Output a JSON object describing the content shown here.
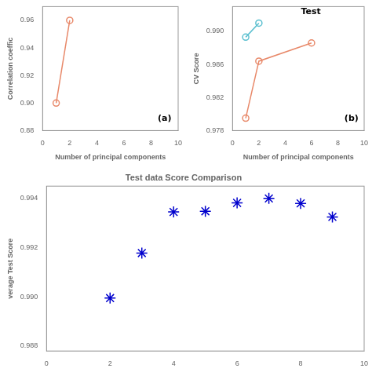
{
  "chart_data": [
    {
      "type": "line",
      "x": [
        1,
        2
      ],
      "values": [
        0.9,
        0.96
      ],
      "color": "#E8896A",
      "marker": "circle",
      "xlabel": "Number of principal components",
      "ylabel": "Correlation coeffic",
      "xlim": [
        0,
        10
      ],
      "xticks": [
        0,
        2,
        4,
        6,
        8,
        10
      ],
      "ylim": [
        0.88,
        0.97
      ],
      "yticks": [
        0.88,
        {
          "value": 0.9,
          "label": "0.90"
        },
        0.92,
        0.94,
        0.96
      ],
      "grid": false,
      "annotations": [
        "(a)"
      ]
    },
    {
      "type": "line",
      "series": [
        {
          "x": [
            1,
            2,
            6
          ],
          "values": [
            0.9795,
            0.9864,
            0.9886
          ],
          "color": "#E8896A",
          "marker": "circle"
        },
        {
          "x": [
            1,
            2
          ],
          "values": [
            0.9893,
            0.991
          ],
          "color": "#5ABFCF",
          "marker": "circle"
        }
      ],
      "xlabel": "Number of principal components",
      "ylabel": "CV Score",
      "xlim": [
        0,
        10
      ],
      "xticks": [
        0,
        2,
        4,
        6,
        8,
        10
      ],
      "ylim": [
        0.978,
        0.993
      ],
      "yticks": [
        0.978,
        0.982,
        0.986,
        {
          "value": 0.99,
          "label": "0.990"
        }
      ],
      "grid": false,
      "annotations": [
        "Test",
        "(b)"
      ]
    },
    {
      "type": "scatter",
      "title": "Test data Score Comparison",
      "x": [
        2,
        3,
        4,
        5,
        6,
        7,
        8,
        9
      ],
      "values": [
        0.98995,
        0.99178,
        0.99345,
        0.99348,
        0.99382,
        0.994,
        0.9938,
        0.99325
      ],
      "color": "#0000CD",
      "marker": "star",
      "ylabel": "verage Test Score",
      "xlim": [
        0,
        10
      ],
      "xticks": [
        0,
        2,
        4,
        6,
        8,
        10
      ],
      "ylim": [
        0.9878,
        0.9945
      ],
      "yticks": [
        0.988,
        {
          "value": 0.99,
          "label": "0.990"
        },
        0.992,
        0.994
      ],
      "grid": false
    }
  ]
}
